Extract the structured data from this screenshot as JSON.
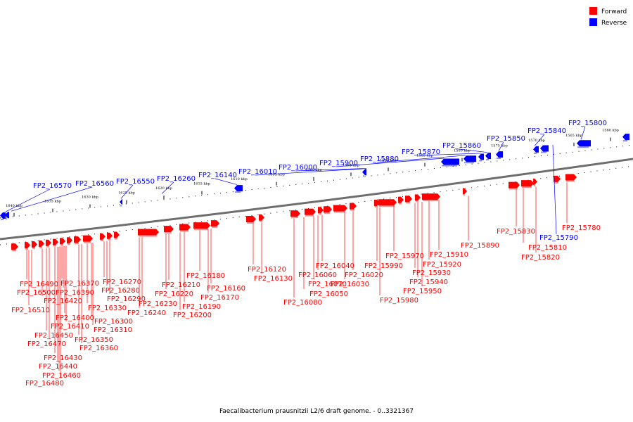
{
  "caption": "Faecalibacterium prausnitzii L2/6 draft genome. - 0..3321367",
  "legend": [
    {
      "label": "Forward",
      "color": "#ff0000"
    },
    {
      "label": "Reverse",
      "color": "#0000ff"
    }
  ],
  "colors": {
    "forward": "#ff0000",
    "reverse": "#0000ff",
    "axis": "#7a7a7a"
  },
  "scale_labels": [
    "1640 kbp",
    "1635 kbp",
    "1630 kbp",
    "1625 kbp",
    "1620 kbp",
    "1615 kbp",
    "1610 kbp",
    "1605 kbp",
    "1600 kbp",
    "1595 kbp",
    "1590 kbp",
    "1585 kbp",
    "1580 kbp",
    "1575 kbp",
    "1570 kbp",
    "1565 kbp",
    "1560 kbp"
  ],
  "reverse_genes": [
    "FP2_16570",
    "FP2_16560",
    "FP2_16550",
    "FP2_16260",
    "FP2_16140",
    "FP2_16010",
    "FP2_16000",
    "FP2_15900",
    "FP2_15880",
    "FP2_15870",
    "FP2_15860",
    "FP2_15850",
    "FP2_15840",
    "FP2_15800",
    "FP2_15790"
  ],
  "forward_genes": [
    "FP2_16490",
    "FP2_16500",
    "FP2_16510",
    "FP2_16420",
    "FP2_16370",
    "FP2_16390",
    "FP2_16400",
    "FP2_16410",
    "FP2_16450",
    "FP2_16470",
    "FP2_16430",
    "FP2_16440",
    "FP2_16460",
    "FP2_16480",
    "FP2_16350",
    "FP2_16360",
    "FP2_16330",
    "FP2_16300",
    "FP2_16310",
    "FP2_16270",
    "FP2_16280",
    "FP2_16290",
    "FP2_16230",
    "FP2_16240",
    "FP2_16210",
    "FP2_16220",
    "FP2_16190",
    "FP2_16200",
    "FP2_16180",
    "FP2_16160",
    "FP2_16170",
    "FP2_16120",
    "FP2_16130",
    "FP2_16040",
    "FP2_16060",
    "FP2_16070",
    "FP2_16080",
    "FP2_16050",
    "FP2_16020",
    "FP2_16030",
    "FP2_15990",
    "FP2_15970",
    "FP2_15980",
    "FP2_15930",
    "FP2_15940",
    "FP2_15950",
    "FP2_15920",
    "FP2_15910",
    "FP2_15890",
    "FP2_15830",
    "FP2_15810",
    "FP2_15820",
    "FP2_15780"
  ]
}
